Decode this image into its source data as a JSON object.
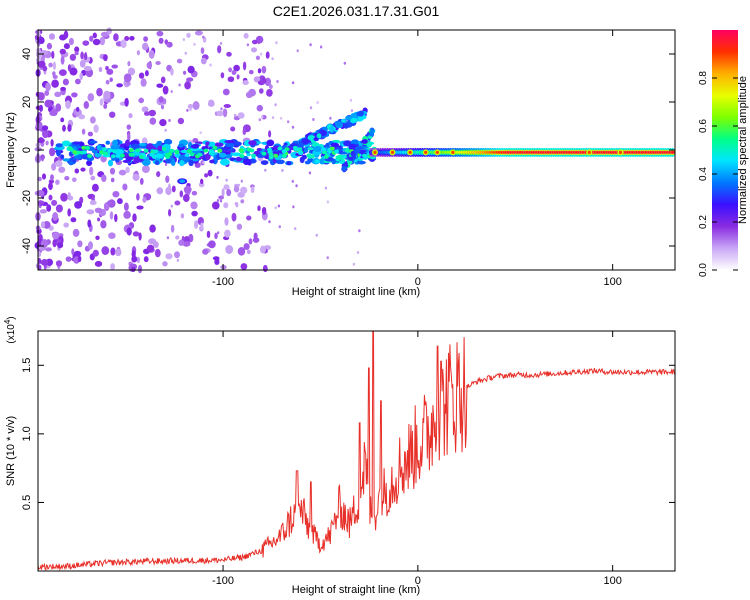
{
  "figure_title": "C2E1.2026.031.17.31.G01",
  "chart_data": [
    {
      "type": "heatmap",
      "title": "C2E1.2026.031.17.31.G01",
      "xlabel": "Height of straight line (km)",
      "ylabel": "Frequency (Hz)",
      "xlim": [
        -195,
        132
      ],
      "ylim": [
        -50,
        50
      ],
      "x_ticks": [
        -100,
        0,
        100
      ],
      "y_ticks": [
        -40,
        -20,
        0,
        20,
        40
      ],
      "colorbar": {
        "label": "Normalized spectral amplitude",
        "range": [
          0,
          1
        ],
        "ticks": [
          0.0,
          0.2,
          0.4,
          0.6,
          0.8
        ],
        "colors": [
          "#ffffff",
          "#c9a6f5",
          "#8a2be2",
          "#3a10ff",
          "#0078ff",
          "#00e5ff",
          "#00ff88",
          "#7dff00",
          "#e8ff00",
          "#ffb000",
          "#ff3000",
          "#ff0060"
        ]
      },
      "features": [
        {
          "name": "main-band",
          "x": [
            -185,
            132
          ],
          "freq_center": -1,
          "note": "narrow band near 0 Hz, amplitude rising toward positive heights"
        },
        {
          "name": "upper-branch",
          "x": [
            -60,
            -25
          ],
          "freq_range": [
            3,
            17
          ]
        },
        {
          "name": "lower-branch",
          "x": [
            -38,
            -23
          ],
          "freq_range": [
            -8,
            9
          ]
        },
        {
          "name": "blob",
          "x": -121,
          "freq": -13
        },
        {
          "name": "bright-core",
          "x": [
            35,
            132
          ],
          "amplitude": 0.95
        }
      ]
    },
    {
      "type": "line",
      "title": "",
      "xlabel": "Height of straight line (km)",
      "ylabel": "SNR (10 * v/v)",
      "y_multiplier": "(x10",
      "y_multiplier_exp": "4",
      "y_multiplier_close": ")",
      "xlim": [
        -195,
        132
      ],
      "ylim": [
        0,
        17500
      ],
      "x_ticks": [
        -100,
        0,
        100
      ],
      "y_ticks": [
        5000,
        10000,
        15000
      ],
      "y_tick_labels": [
        "0.5",
        "1.0",
        "1.5"
      ],
      "series": [
        {
          "name": "SNR",
          "color": "#e8302a",
          "x": [
            -195,
            -180,
            -160,
            -140,
            -120,
            -100,
            -90,
            -80,
            -75,
            -70,
            -65,
            -60,
            -55,
            -50,
            -45,
            -40,
            -35,
            -30,
            -27,
            -25,
            -23,
            -20,
            -15,
            -10,
            -5,
            0,
            5,
            10,
            15,
            20,
            30,
            40,
            50,
            60,
            70,
            80,
            90,
            100,
            110,
            120,
            132
          ],
          "values": [
            300,
            350,
            600,
            700,
            750,
            800,
            1000,
            1500,
            2000,
            2600,
            3800,
            4500,
            2800,
            2000,
            2600,
            4800,
            3400,
            5500,
            8000,
            4500,
            3800,
            5200,
            6200,
            7500,
            8200,
            9300,
            10000,
            11500,
            12500,
            13000,
            13800,
            14200,
            14300,
            14300,
            14400,
            14500,
            14600,
            14500,
            14500,
            14500,
            14500
          ],
          "spikes": [
            {
              "x": -62,
              "value": 7300
            },
            {
              "x": -55,
              "value": 6500
            },
            {
              "x": -30,
              "value": 10800
            },
            {
              "x": -25,
              "value": 14800
            },
            {
              "x": -23,
              "value": 17500
            },
            {
              "x": -19,
              "value": 12400
            },
            {
              "x": 10,
              "value": 16400
            },
            {
              "x": 12,
              "value": 15300
            }
          ]
        }
      ]
    }
  ]
}
